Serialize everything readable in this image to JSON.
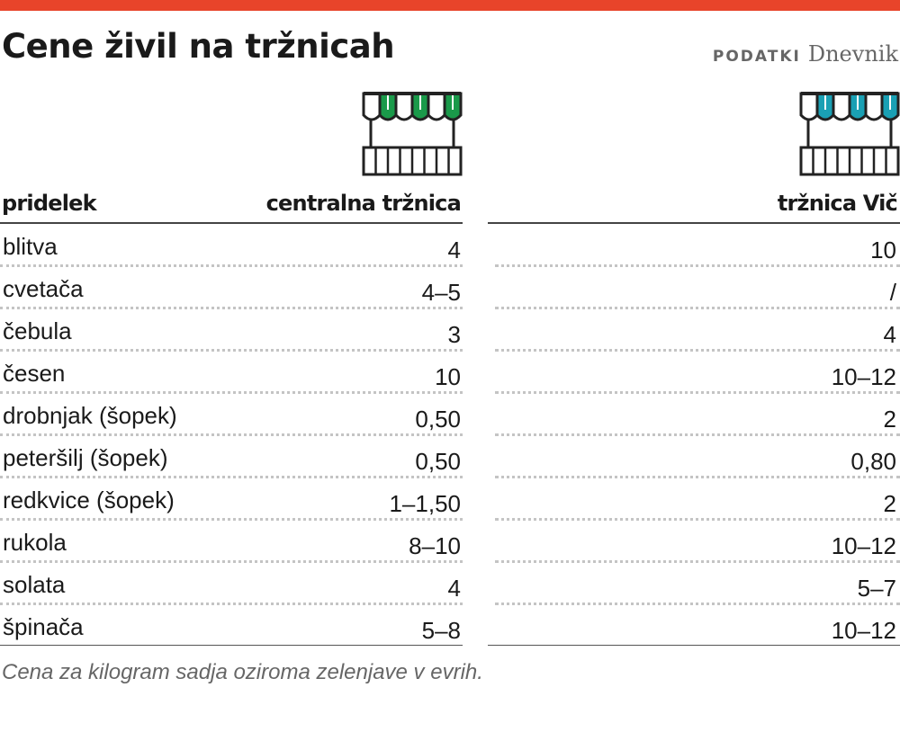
{
  "title": "Cene živil na tržnicah",
  "source": {
    "label": "PODATKI",
    "name": "Dnevnik"
  },
  "colors": {
    "accent_bar": "#e8442a",
    "central_icon": "#1a9a4a",
    "vic_icon": "#1aa0b4"
  },
  "icons": {
    "central": "market-stall-icon",
    "vic": "market-stall-icon"
  },
  "chart_data": {
    "type": "table",
    "columns": [
      "pridelek",
      "centralna tržnica",
      "tržnica Vič"
    ],
    "rows": [
      {
        "name": "blitva",
        "central": "4",
        "vic": "10"
      },
      {
        "name": "cvetača",
        "central": "4–5",
        "vic": "/"
      },
      {
        "name": "čebula",
        "central": "3",
        "vic": "4"
      },
      {
        "name": "česen",
        "central": "10",
        "vic": "10–12"
      },
      {
        "name": "drobnjak (šopek)",
        "central": "0,50",
        "vic": "2"
      },
      {
        "name": "peteršilj (šopek)",
        "central": "0,50",
        "vic": "0,80"
      },
      {
        "name": "redkvice (šopek)",
        "central": "1–1,50",
        "vic": "2"
      },
      {
        "name": "rukola",
        "central": "8–10",
        "vic": "10–12"
      },
      {
        "name": "solata",
        "central": "4",
        "vic": "5–7"
      },
      {
        "name": "špinača",
        "central": "5–8",
        "vic": "10–12"
      }
    ],
    "note": "Cena za kilogram sadja oziroma zelenjave v evrih."
  }
}
